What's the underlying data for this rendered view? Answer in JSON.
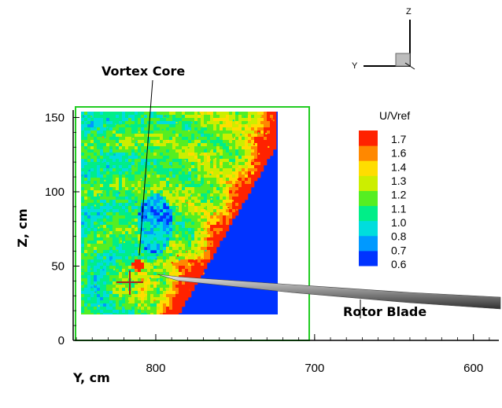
{
  "chart_data": {
    "type": "heatmap",
    "title": "",
    "xlabel": "Y, cm",
    "ylabel": "Z, cm",
    "xlim": [
      852,
      584
    ],
    "ylim": [
      0,
      155
    ],
    "x_ticks": [
      800,
      700,
      600
    ],
    "y_ticks": [
      0,
      50,
      100,
      150
    ],
    "x_reversed": true,
    "colorbar": {
      "title": "U/Vref",
      "levels": [
        1.7,
        1.6,
        1.4,
        1.3,
        1.2,
        1.1,
        1.0,
        0.8,
        0.7,
        0.6
      ],
      "colors": [
        "#0033ff",
        "#0099ff",
        "#00dddd",
        "#00ee88",
        "#55ee22",
        "#ccee00",
        "#ffdd00",
        "#ff8800",
        "#ff2200"
      ]
    },
    "annotations": [
      {
        "text": "Vortex Core",
        "y": 813,
        "z": 59
      },
      {
        "text": "Rotor Blade",
        "y": 660,
        "z": 37
      }
    ],
    "vortex_core_marker": {
      "y": 815,
      "z": 48
    },
    "colors": {
      "frame": "#22cc22",
      "background_field": "#0000ee",
      "marker": "#aa2222",
      "blade": "#999999"
    }
  },
  "triad": {
    "z_label": "Z",
    "y_label": "Y"
  }
}
